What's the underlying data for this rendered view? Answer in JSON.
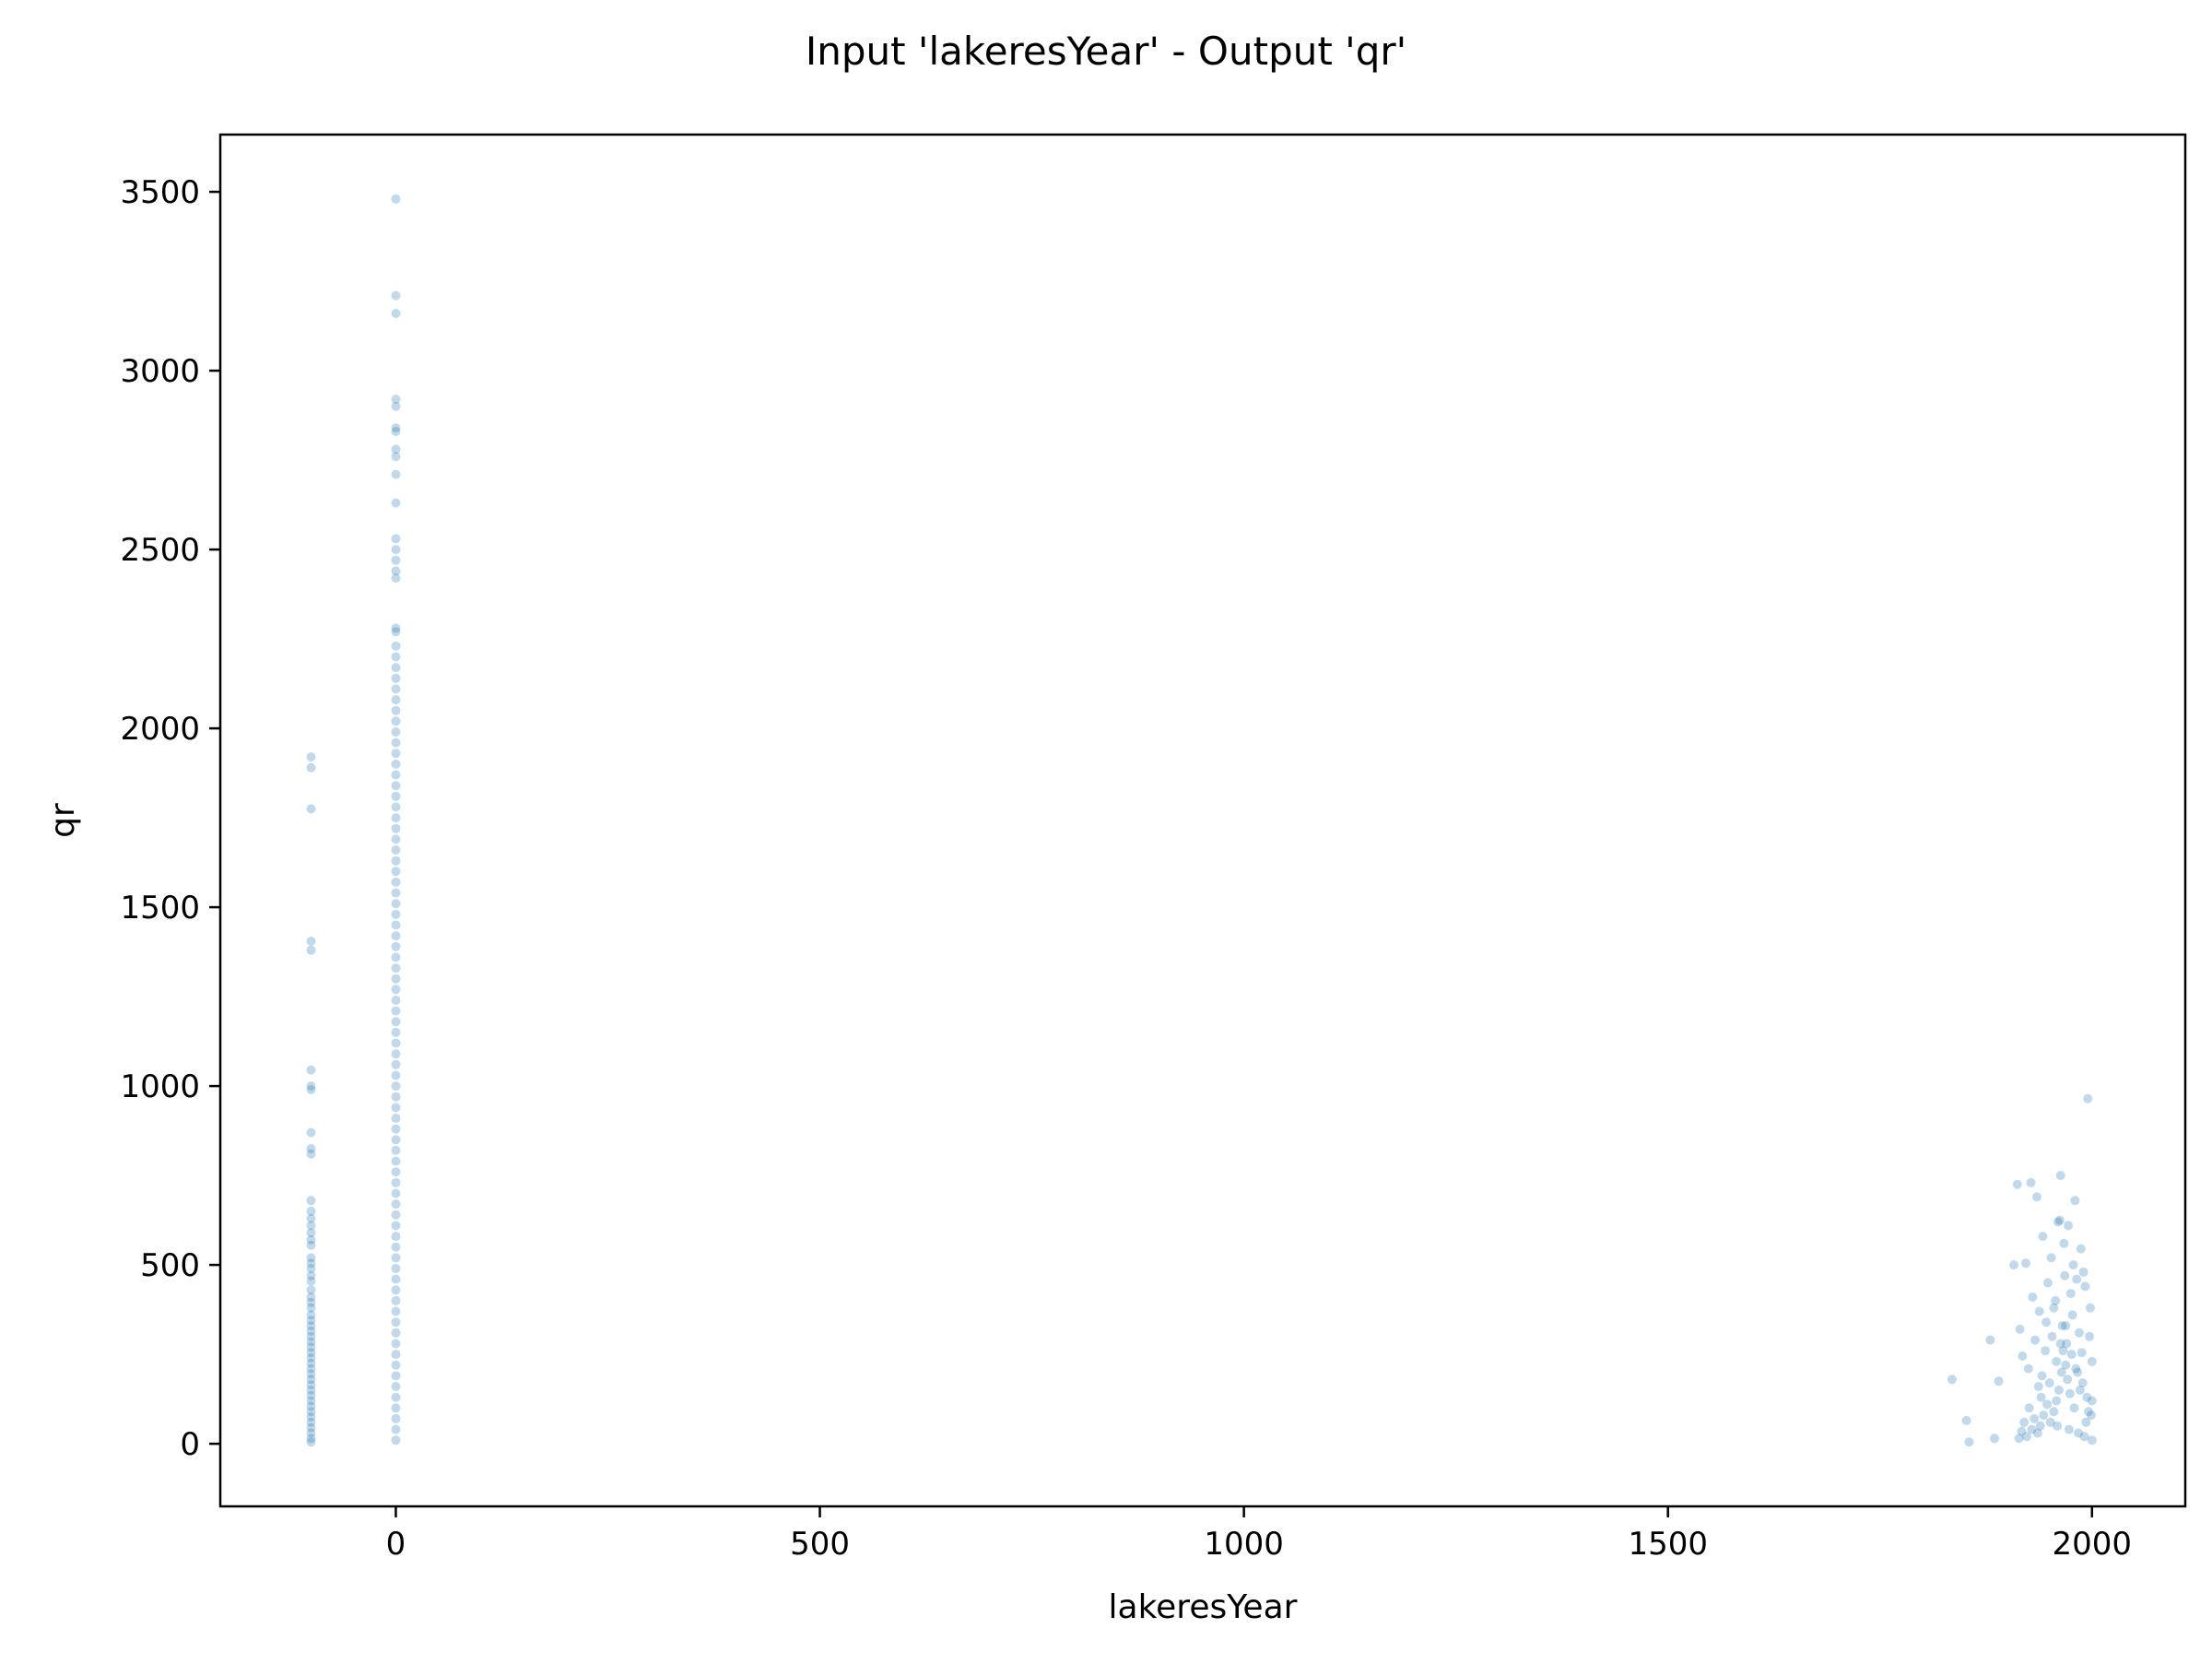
{
  "chart_data": {
    "type": "scatter",
    "title": "Input 'lakeresYear' - Output 'qr'",
    "xlabel": "lakeresYear",
    "ylabel": "qr",
    "xlim": [
      -207,
      2110
    ],
    "ylim": [
      -175,
      3660
    ],
    "xticks": [
      0,
      500,
      1000,
      1500,
      2000
    ],
    "yticks": [
      0,
      500,
      1000,
      1500,
      2000,
      2500,
      3000,
      3500
    ],
    "grid": false,
    "legend": "none",
    "marker_color": "#1f77b4",
    "marker_alpha": 0.28,
    "series": [
      {
        "points": [
          [
            -100,
            1920
          ],
          [
            -100,
            1890
          ],
          [
            -100,
            1775
          ],
          [
            -100,
            1405
          ],
          [
            -100,
            1380
          ],
          [
            -100,
            1045
          ],
          [
            -100,
            1000
          ],
          [
            -100,
            990
          ],
          [
            -100,
            870
          ],
          [
            -100,
            825
          ],
          [
            -100,
            810
          ],
          [
            -100,
            680
          ],
          [
            -100,
            650
          ],
          [
            -100,
            630
          ],
          [
            -100,
            610
          ],
          [
            -100,
            590
          ],
          [
            -100,
            570
          ],
          [
            -100,
            555
          ],
          [
            -100,
            520
          ],
          [
            -100,
            505
          ],
          [
            -100,
            490
          ],
          [
            -100,
            470
          ],
          [
            -100,
            455
          ],
          [
            -100,
            430
          ],
          [
            -100,
            410
          ],
          [
            -100,
            395
          ],
          [
            -100,
            380
          ],
          [
            -100,
            360
          ],
          [
            -100,
            345
          ],
          [
            -100,
            330
          ],
          [
            -100,
            315
          ],
          [
            -100,
            300
          ],
          [
            -100,
            285
          ],
          [
            -100,
            270
          ],
          [
            -100,
            255
          ],
          [
            -100,
            240
          ],
          [
            -100,
            225
          ],
          [
            -100,
            210
          ],
          [
            -100,
            195
          ],
          [
            -100,
            180
          ],
          [
            -100,
            165
          ],
          [
            -100,
            150
          ],
          [
            -100,
            135
          ],
          [
            -100,
            120
          ],
          [
            -100,
            105
          ],
          [
            -100,
            90
          ],
          [
            -100,
            75
          ],
          [
            -100,
            60
          ],
          [
            -100,
            45
          ],
          [
            -100,
            30
          ],
          [
            -100,
            15
          ],
          [
            -100,
            5
          ],
          [
            0,
            3480
          ],
          [
            0,
            3210
          ],
          [
            0,
            3160
          ],
          [
            0,
            2920
          ],
          [
            0,
            2900
          ],
          [
            0,
            2840
          ],
          [
            0,
            2830
          ],
          [
            0,
            2780
          ],
          [
            0,
            2760
          ],
          [
            0,
            2710
          ],
          [
            0,
            2630
          ],
          [
            0,
            2530
          ],
          [
            0,
            2500
          ],
          [
            0,
            2470
          ],
          [
            0,
            2440
          ],
          [
            0,
            2420
          ],
          [
            0,
            2280
          ],
          [
            0,
            2270
          ],
          [
            0,
            2230
          ],
          [
            0,
            2200
          ],
          [
            0,
            2170
          ],
          [
            0,
            2140
          ],
          [
            0,
            2110
          ],
          [
            0,
            2080
          ],
          [
            0,
            2050
          ],
          [
            0,
            2020
          ],
          [
            0,
            1990
          ],
          [
            0,
            1960
          ],
          [
            0,
            1930
          ],
          [
            0,
            1900
          ],
          [
            0,
            1870
          ],
          [
            0,
            1840
          ],
          [
            0,
            1810
          ],
          [
            0,
            1780
          ],
          [
            0,
            1750
          ],
          [
            0,
            1720
          ],
          [
            0,
            1690
          ],
          [
            0,
            1660
          ],
          [
            0,
            1630
          ],
          [
            0,
            1600
          ],
          [
            0,
            1570
          ],
          [
            0,
            1540
          ],
          [
            0,
            1510
          ],
          [
            0,
            1480
          ],
          [
            0,
            1450
          ],
          [
            0,
            1420
          ],
          [
            0,
            1390
          ],
          [
            0,
            1360
          ],
          [
            0,
            1330
          ],
          [
            0,
            1300
          ],
          [
            0,
            1270
          ],
          [
            0,
            1240
          ],
          [
            0,
            1210
          ],
          [
            0,
            1180
          ],
          [
            0,
            1150
          ],
          [
            0,
            1120
          ],
          [
            0,
            1090
          ],
          [
            0,
            1060
          ],
          [
            0,
            1030
          ],
          [
            0,
            1000
          ],
          [
            0,
            970
          ],
          [
            0,
            940
          ],
          [
            0,
            910
          ],
          [
            0,
            880
          ],
          [
            0,
            850
          ],
          [
            0,
            820
          ],
          [
            0,
            790
          ],
          [
            0,
            760
          ],
          [
            0,
            730
          ],
          [
            0,
            700
          ],
          [
            0,
            670
          ],
          [
            0,
            640
          ],
          [
            0,
            610
          ],
          [
            0,
            580
          ],
          [
            0,
            550
          ],
          [
            0,
            520
          ],
          [
            0,
            490
          ],
          [
            0,
            460
          ],
          [
            0,
            430
          ],
          [
            0,
            400
          ],
          [
            0,
            370
          ],
          [
            0,
            340
          ],
          [
            0,
            310
          ],
          [
            0,
            280
          ],
          [
            0,
            250
          ],
          [
            0,
            220
          ],
          [
            0,
            190
          ],
          [
            0,
            160
          ],
          [
            0,
            130
          ],
          [
            0,
            100
          ],
          [
            0,
            70
          ],
          [
            0,
            40
          ],
          [
            0,
            10
          ],
          [
            1835,
            180
          ],
          [
            1852,
            65
          ],
          [
            1855,
            5
          ],
          [
            1880,
            290
          ],
          [
            1885,
            15
          ],
          [
            1890,
            175
          ],
          [
            1908,
            500
          ],
          [
            1912,
            725
          ],
          [
            1915,
            320
          ],
          [
            1918,
            245
          ],
          [
            1922,
            505
          ],
          [
            1925,
            210
          ],
          [
            1928,
            730
          ],
          [
            1930,
            410
          ],
          [
            1933,
            290
          ],
          [
            1935,
            690
          ],
          [
            1938,
            370
          ],
          [
            1940,
            130
          ],
          [
            1942,
            580
          ],
          [
            1945,
            260
          ],
          [
            1948,
            450
          ],
          [
            1950,
            170
          ],
          [
            1952,
            520
          ],
          [
            1955,
            380
          ],
          [
            1958,
            230
          ],
          [
            1960,
            620
          ],
          [
            1962,
            625
          ],
          [
            1963,
            750
          ],
          [
            1965,
            330
          ],
          [
            1967,
            560
          ],
          [
            1968,
            470
          ],
          [
            1970,
            280
          ],
          [
            1972,
            610
          ],
          [
            1975,
            420
          ],
          [
            1977,
            360
          ],
          [
            1978,
            500
          ],
          [
            1980,
            680
          ],
          [
            1982,
            460
          ],
          [
            1985,
            310
          ],
          [
            1987,
            545
          ],
          [
            1988,
            255
          ],
          [
            1990,
            480
          ],
          [
            1992,
            440
          ],
          [
            1995,
            965
          ],
          [
            1997,
            300
          ],
          [
            1998,
            380
          ],
          [
            2000,
            230
          ],
          [
            2000,
            120
          ],
          [
            1996,
            90
          ],
          [
            1993,
            60
          ],
          [
            1986,
            150
          ],
          [
            1983,
            200
          ],
          [
            1979,
            100
          ],
          [
            1974,
            140
          ],
          [
            1971,
            180
          ],
          [
            1969,
            220
          ],
          [
            1966,
            260
          ],
          [
            1964,
            200
          ],
          [
            1961,
            150
          ],
          [
            1958,
            120
          ],
          [
            1955,
            90
          ],
          [
            1951,
            60
          ],
          [
            1947,
            110
          ],
          [
            1943,
            80
          ],
          [
            1939,
            50
          ],
          [
            1936,
            30
          ],
          [
            1932,
            70
          ],
          [
            1929,
            40
          ],
          [
            1926,
            100
          ],
          [
            1923,
            20
          ],
          [
            1920,
            60
          ],
          [
            1917,
            35
          ],
          [
            1914,
            15
          ],
          [
            1946,
            340
          ],
          [
            1953,
            300
          ],
          [
            1957,
            400
          ],
          [
            1963,
            280
          ],
          [
            1969,
            330
          ],
          [
            1976,
            250
          ],
          [
            1981,
            210
          ],
          [
            1989,
            170
          ],
          [
            1994,
            130
          ],
          [
            1999,
            80
          ],
          [
            1941,
            190
          ],
          [
            1937,
            160
          ],
          [
            1959,
            50
          ],
          [
            1973,
            40
          ],
          [
            1984,
            30
          ],
          [
            1991,
            20
          ],
          [
            2000,
            10
          ]
        ]
      }
    ]
  }
}
